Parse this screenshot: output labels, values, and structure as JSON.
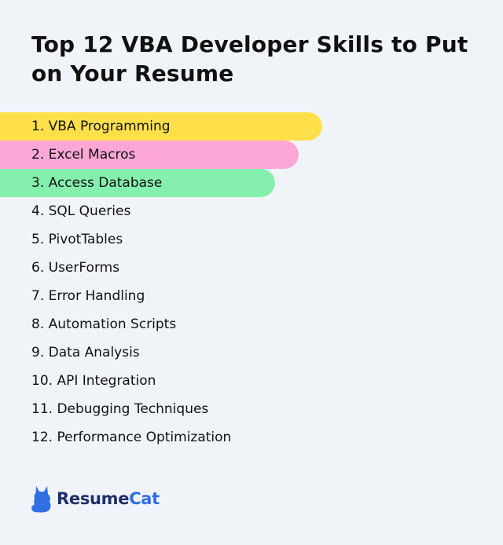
{
  "title": "Top 12 VBA Developer Skills to Put on Your Resume",
  "skills": [
    {
      "label": "1. VBA Programming",
      "highlight": "#ffe04b"
    },
    {
      "label": "2. Excel Macros",
      "highlight": "#fca7d6"
    },
    {
      "label": "3. Access Database",
      "highlight": "#85efad"
    },
    {
      "label": "4. SQL Queries"
    },
    {
      "label": "5. PivotTables"
    },
    {
      "label": "6. UserForms"
    },
    {
      "label": "7. Error Handling"
    },
    {
      "label": "8. Automation Scripts"
    },
    {
      "label": "9. Data Analysis"
    },
    {
      "label": "10. API Integration"
    },
    {
      "label": "11. Debugging Techniques"
    },
    {
      "label": "12. Performance Optimization"
    }
  ],
  "logo": {
    "icon": "cat-icon",
    "text_primary": "Resume",
    "text_accent": "Cat",
    "color": "#2f6fe0"
  }
}
